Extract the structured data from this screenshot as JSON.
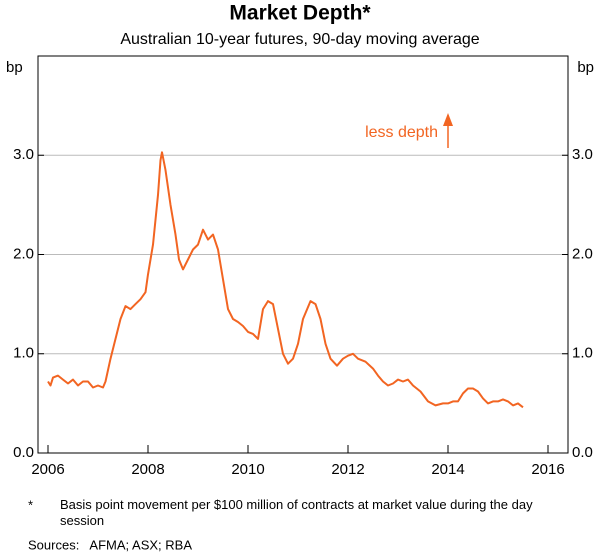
{
  "chart_data": {
    "type": "line",
    "title": "Market Depth*",
    "subtitle": "Australian 10-year futures, 90-day moving average",
    "y_label": "bp",
    "annotation": "less depth",
    "footnote": "Basis point movement per $100 million of contracts at market value during the day session",
    "footnote_marker": "*",
    "sources": "Sources:   AFMA; ASX; RBA",
    "xlim": [
      2005.8,
      2016.4
    ],
    "xticks": [
      2006,
      2008,
      2010,
      2012,
      2014,
      2016
    ],
    "ylim": [
      0,
      4
    ],
    "yticks": [
      {
        "value": 0,
        "label": "0.0"
      },
      {
        "value": 1,
        "label": "1.0"
      },
      {
        "value": 2,
        "label": "2.0"
      },
      {
        "value": 3,
        "label": "3.0"
      }
    ],
    "grid": true,
    "series": [
      {
        "name": "Market depth",
        "color": "#f26522",
        "x": [
          2006.0,
          2006.05,
          2006.1,
          2006.2,
          2006.3,
          2006.4,
          2006.5,
          2006.6,
          2006.7,
          2006.8,
          2006.9,
          2007.0,
          2007.1,
          2007.15,
          2007.25,
          2007.35,
          2007.45,
          2007.55,
          2007.65,
          2007.75,
          2007.85,
          2007.95,
          2008.0,
          2008.1,
          2008.2,
          2008.25,
          2008.28,
          2008.35,
          2008.45,
          2008.55,
          2008.62,
          2008.7,
          2008.8,
          2008.9,
          2009.0,
          2009.1,
          2009.2,
          2009.3,
          2009.4,
          2009.5,
          2009.6,
          2009.7,
          2009.8,
          2009.9,
          2010.0,
          2010.1,
          2010.2,
          2010.3,
          2010.4,
          2010.5,
          2010.6,
          2010.7,
          2010.8,
          2010.9,
          2011.0,
          2011.1,
          2011.25,
          2011.35,
          2011.45,
          2011.55,
          2011.65,
          2011.78,
          2011.9,
          2012.0,
          2012.1,
          2012.2,
          2012.35,
          2012.5,
          2012.6,
          2012.7,
          2012.8,
          2012.9,
          2013.0,
          2013.1,
          2013.2,
          2013.3,
          2013.45,
          2013.6,
          2013.75,
          2013.9,
          2014.0,
          2014.1,
          2014.2,
          2014.3,
          2014.4,
          2014.5,
          2014.6,
          2014.7,
          2014.8,
          2014.9,
          2015.0,
          2015.1,
          2015.2,
          2015.3,
          2015.4,
          2015.5
        ],
        "values": [
          0.72,
          0.68,
          0.76,
          0.78,
          0.74,
          0.7,
          0.74,
          0.68,
          0.72,
          0.72,
          0.66,
          0.68,
          0.66,
          0.72,
          0.95,
          1.15,
          1.35,
          1.48,
          1.45,
          1.5,
          1.55,
          1.62,
          1.8,
          2.1,
          2.6,
          2.95,
          3.03,
          2.85,
          2.5,
          2.2,
          1.95,
          1.85,
          1.95,
          2.05,
          2.1,
          2.25,
          2.15,
          2.2,
          2.05,
          1.75,
          1.45,
          1.35,
          1.32,
          1.28,
          1.22,
          1.2,
          1.15,
          1.45,
          1.53,
          1.5,
          1.25,
          1.0,
          0.9,
          0.95,
          1.1,
          1.35,
          1.53,
          1.5,
          1.35,
          1.1,
          0.95,
          0.88,
          0.95,
          0.98,
          1.0,
          0.95,
          0.92,
          0.85,
          0.78,
          0.72,
          0.68,
          0.7,
          0.74,
          0.72,
          0.74,
          0.68,
          0.62,
          0.52,
          0.48,
          0.5,
          0.5,
          0.52,
          0.52,
          0.6,
          0.65,
          0.65,
          0.62,
          0.55,
          0.5,
          0.52,
          0.52,
          0.54,
          0.52,
          0.48,
          0.5,
          0.46
        ]
      }
    ]
  }
}
